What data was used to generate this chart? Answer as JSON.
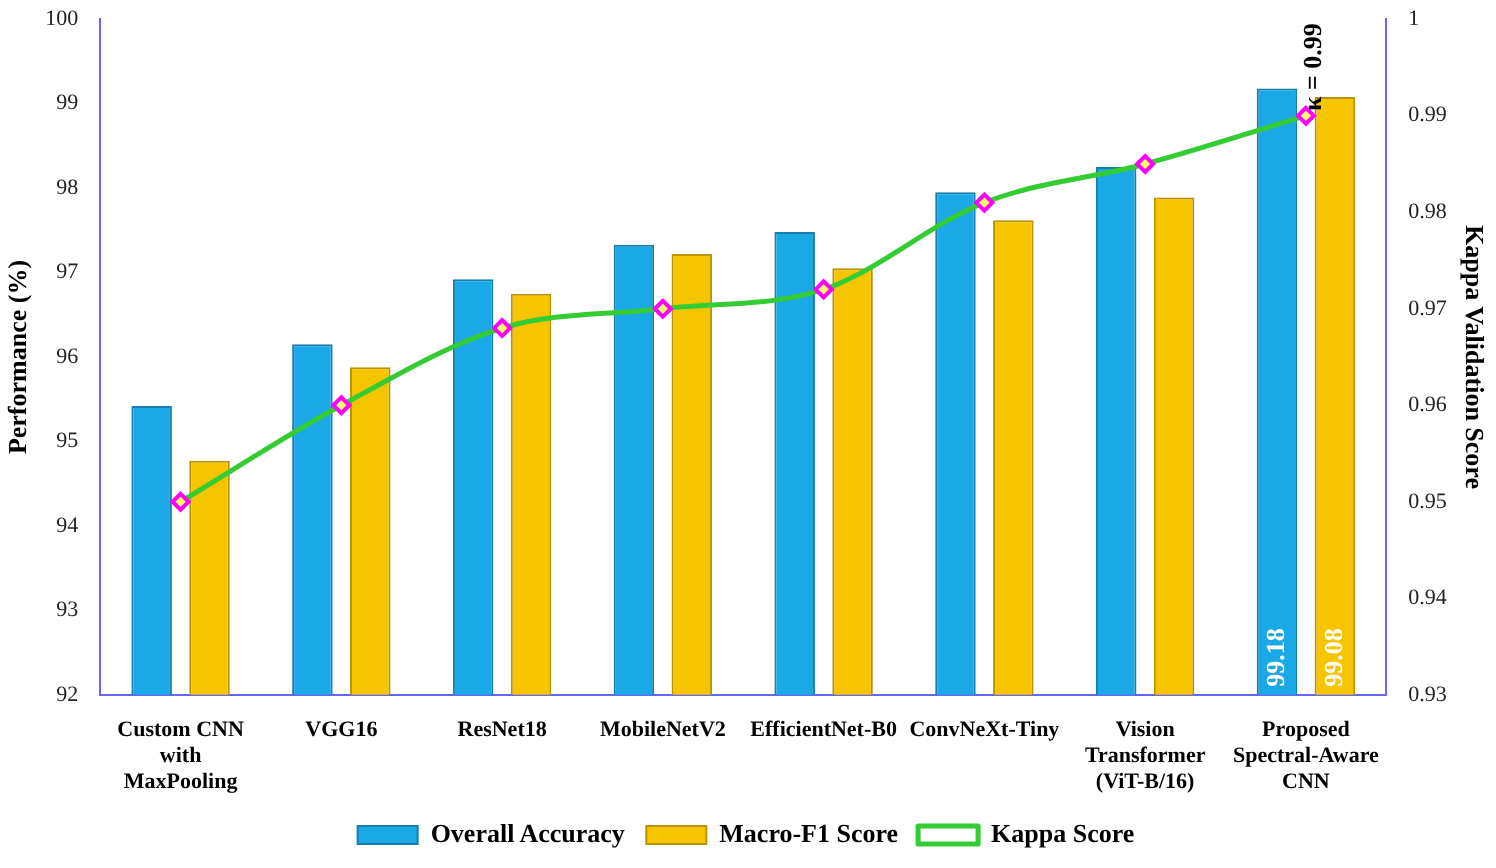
{
  "chart_data": {
    "type": "bar",
    "categories": [
      "Custom CNN with MaxPooling",
      "VGG16",
      "ResNet18",
      "MobileNetV2",
      "EfficientNet-B0",
      "ConvNeXt-Tiny",
      "Vision Transformer (ViT-B/16)",
      "Proposed Spectral-Aware CNN"
    ],
    "series": [
      {
        "name": "Overall Accuracy",
        "color": "#1aa8e6",
        "values": [
          95.42,
          96.15,
          96.92,
          97.33,
          97.48,
          97.95,
          98.25,
          99.18
        ],
        "value_labels": [
          null,
          null,
          null,
          null,
          null,
          null,
          null,
          "99.18"
        ]
      },
      {
        "name": "Macro-F1 Score",
        "color": "#f7c400",
        "values": [
          94.77,
          95.88,
          96.75,
          97.22,
          97.05,
          97.62,
          97.89,
          99.08
        ],
        "value_labels": [
          null,
          null,
          null,
          null,
          null,
          null,
          null,
          "99.08"
        ]
      },
      {
        "name": "Kappa Score",
        "type": "line",
        "axis": "y2",
        "color": "#33cc33",
        "marker": "diamond",
        "values": [
          0.95,
          0.96,
          0.968,
          0.97,
          0.972,
          0.981,
          0.985,
          0.99
        ]
      }
    ],
    "ylabel": "Performance (%)",
    "y2label": "Kappa Validation Score",
    "ylim": [
      92,
      100
    ],
    "yticks": [
      92,
      93,
      94,
      95,
      96,
      97,
      98,
      99,
      100
    ],
    "y2lim": [
      0.93,
      1
    ],
    "y2ticks": [
      0.93,
      0.94,
      0.95,
      0.96,
      0.97,
      0.98,
      0.99,
      1
    ],
    "annotations": [
      "κ = 0.99"
    ],
    "grid": false,
    "legend": "bottom"
  }
}
